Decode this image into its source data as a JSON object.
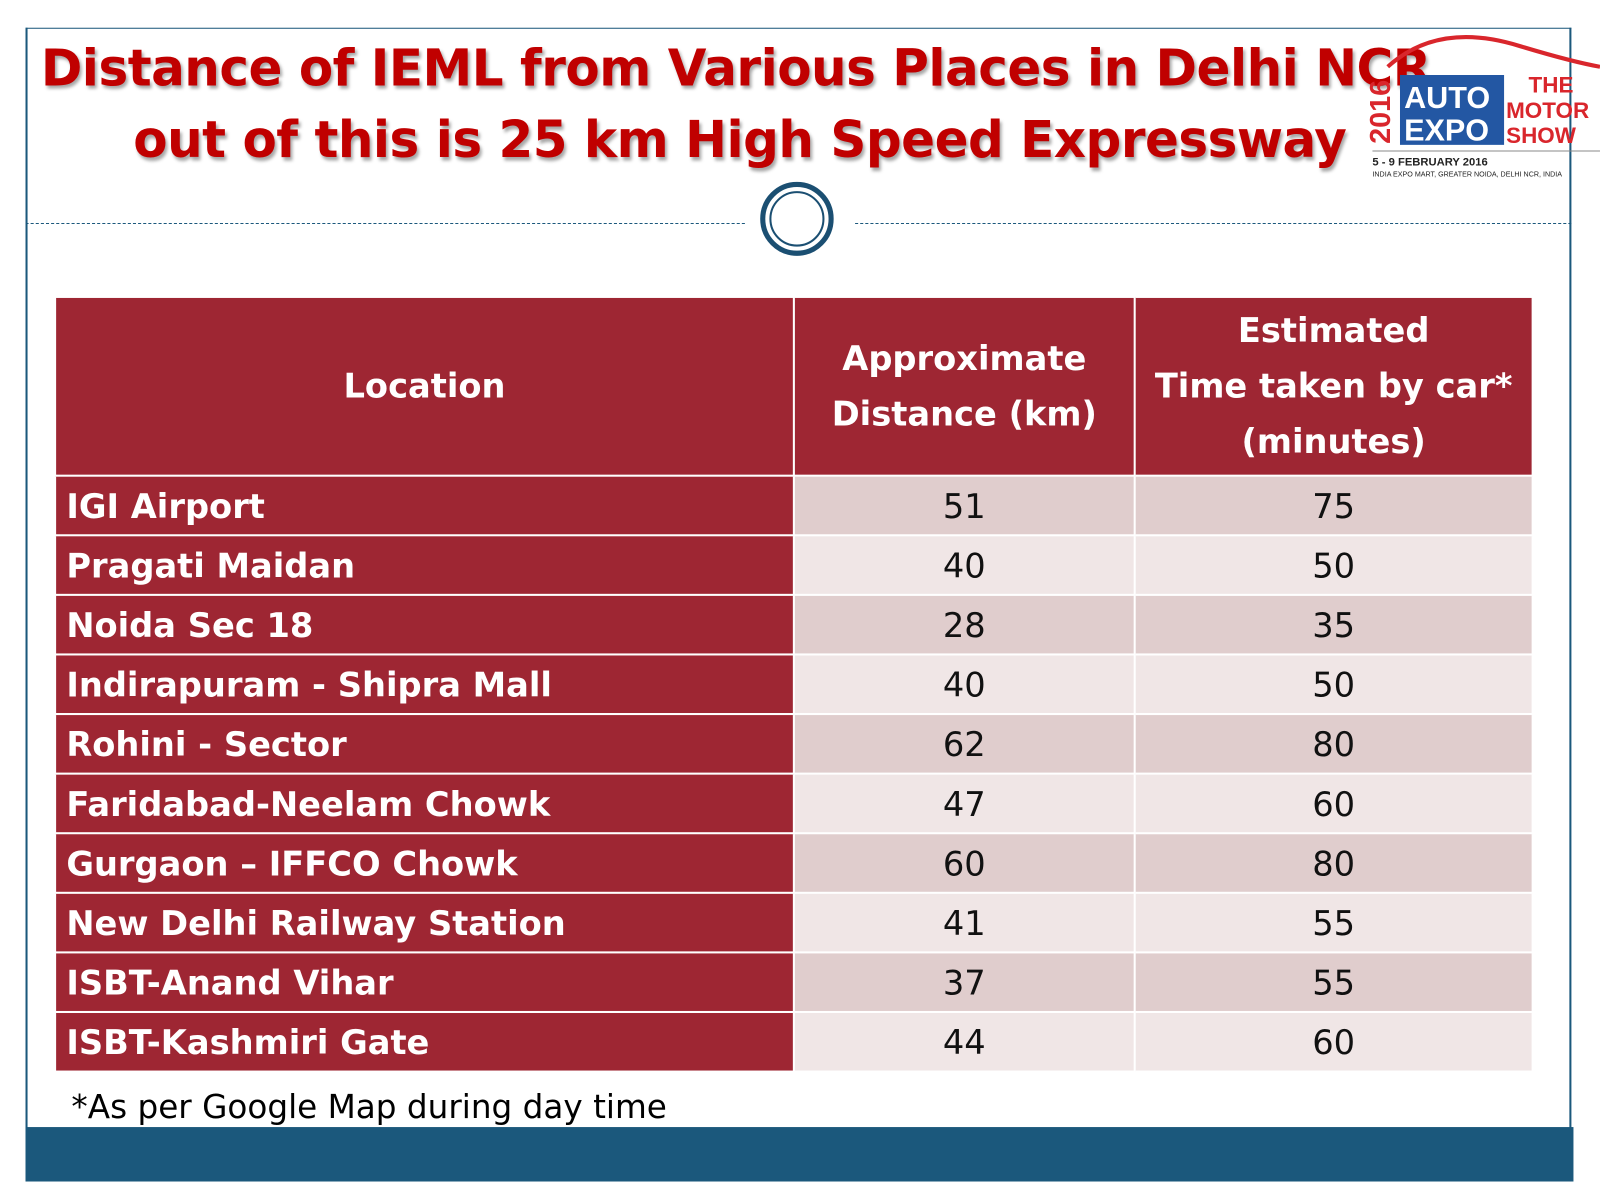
{
  "title": {
    "line1": "Distance of IEML from Various Places in Delhi NCR",
    "line2": "out of this is 25 km High Speed Expressway"
  },
  "logo": {
    "year": "2016",
    "auto": "AUTO",
    "expo": "EXPO",
    "the": "THE",
    "motor": "MOTOR",
    "show": "SHOW",
    "dates": "5 - 9 FEBRUARY 2016",
    "venue": "INDIA EXPO MART, GREATER NOIDA, DELHI NCR, INDIA"
  },
  "table": {
    "headers": {
      "location": "Location",
      "distance_1": "Approximate",
      "distance_2": "Distance (km)",
      "time_1": "Estimated",
      "time_2": "Time taken by car*",
      "time_3": "(minutes)"
    },
    "rows": [
      {
        "location": "IGI Airport",
        "distance": "51",
        "time": "75"
      },
      {
        "location": "Pragati Maidan",
        "distance": "40",
        "time": "50"
      },
      {
        "location": "Noida Sec 18",
        "distance": "28",
        "time": "35"
      },
      {
        "location": "Indirapuram - Shipra Mall",
        "distance": "40",
        "time": "50"
      },
      {
        "location": "Rohini - Sector",
        "distance": "62",
        "time": "80"
      },
      {
        "location": "Faridabad-Neelam Chowk",
        "distance": "47",
        "time": "60"
      },
      {
        "location": "Gurgaon – IFFCO Chowk",
        "distance": "60",
        "time": "80"
      },
      {
        "location": "New Delhi Railway Station",
        "distance": "41",
        "time": "55"
      },
      {
        "location": "ISBT-Anand Vihar",
        "distance": "37",
        "time": "55"
      },
      {
        "location": "ISBT-Kashmiri Gate",
        "distance": "44",
        "time": "60"
      }
    ]
  },
  "footnote": "*As per Google Map during day time",
  "colors": {
    "title": "#c00000",
    "header": "#9e2633",
    "accent": "#1b587c"
  }
}
